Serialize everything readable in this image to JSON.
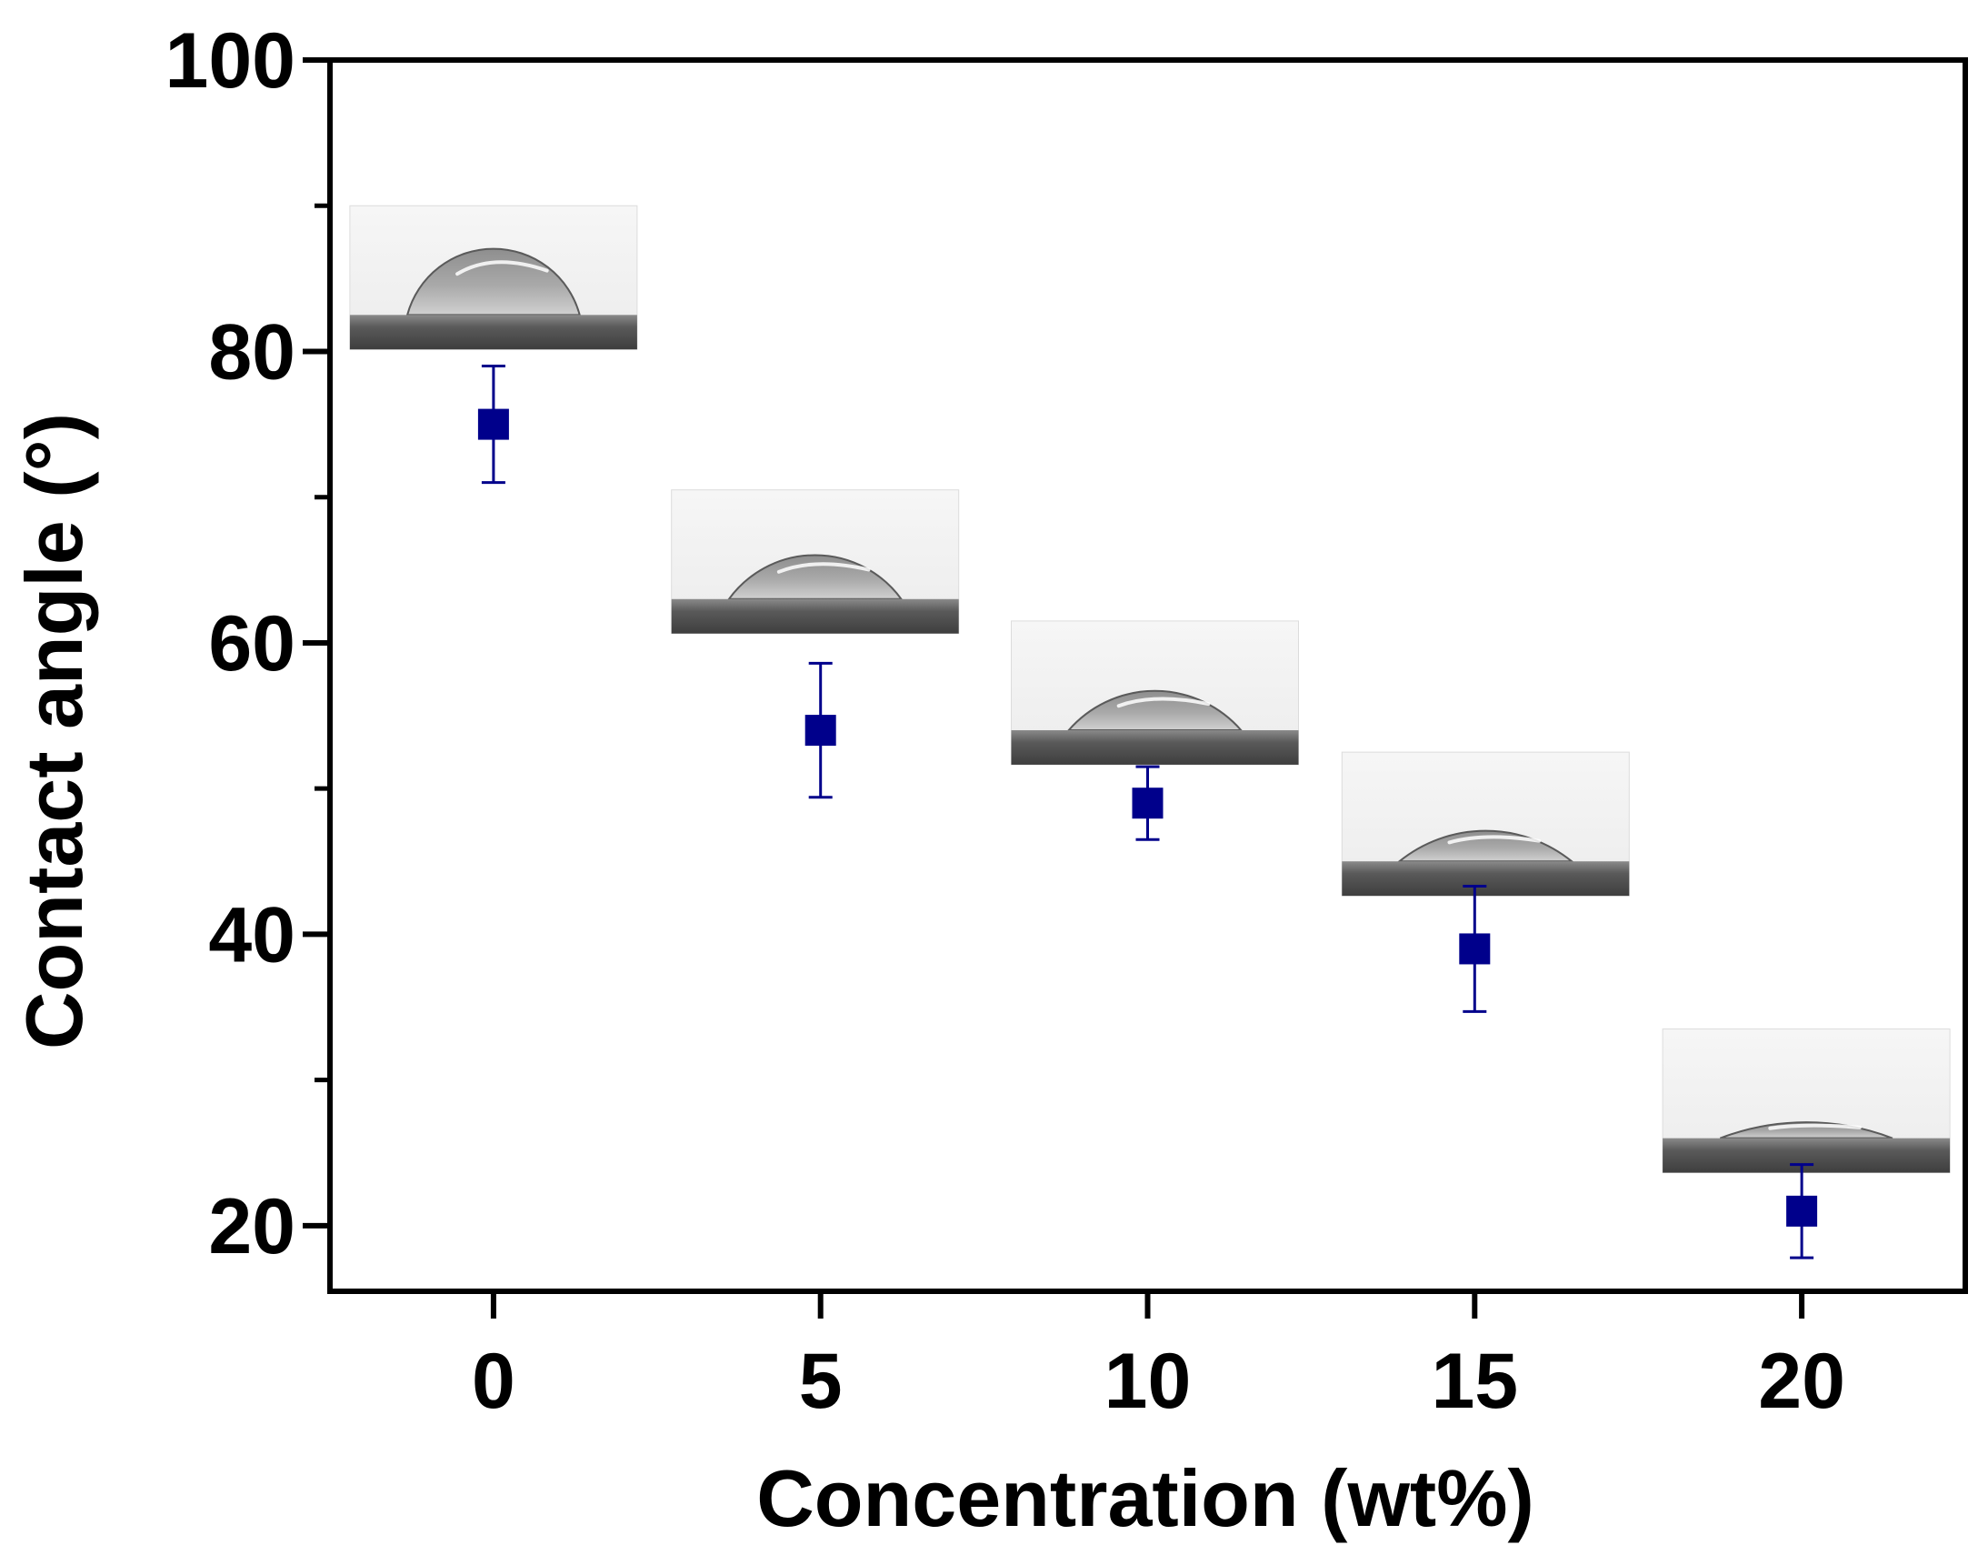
{
  "chart_data": {
    "type": "scatter",
    "title": "",
    "xlabel": "Concentration (wt%)",
    "ylabel": "Contact angle (°)",
    "xlim": [
      -2.5,
      22.5
    ],
    "ylim": [
      15.5,
      100
    ],
    "x_ticks": [
      0,
      5,
      10,
      15,
      20
    ],
    "x_tick_labels": [
      "0",
      "5",
      "10",
      "15",
      "20"
    ],
    "y_major_ticks": [
      20,
      40,
      60,
      80,
      100
    ],
    "y_tick_labels": [
      "20",
      "40",
      "60",
      "80",
      "100"
    ],
    "y_minor_ticks": [
      30,
      50,
      70,
      90
    ],
    "grid": false,
    "series": [
      {
        "name": "Contact angle",
        "color": "#00008B",
        "marker": "square",
        "x": [
          0,
          5,
          10,
          15,
          20
        ],
        "y": [
          75,
          54,
          49,
          39,
          21
        ],
        "error": [
          4,
          4.6,
          2.5,
          4.3,
          3.2
        ]
      }
    ],
    "annotations": [
      {
        "type": "droplet-image",
        "x": 0,
        "angle_deg": 75,
        "top": 90
      },
      {
        "type": "droplet-image",
        "x": 5,
        "angle_deg": 54,
        "top": 70.5
      },
      {
        "type": "droplet-image",
        "x": 10,
        "angle_deg": 49,
        "top": 61.5
      },
      {
        "type": "droplet-image",
        "x": 15,
        "angle_deg": 39,
        "top": 52.5
      },
      {
        "type": "droplet-image",
        "x": 20,
        "angle_deg": 21,
        "top": 33.5
      }
    ]
  }
}
